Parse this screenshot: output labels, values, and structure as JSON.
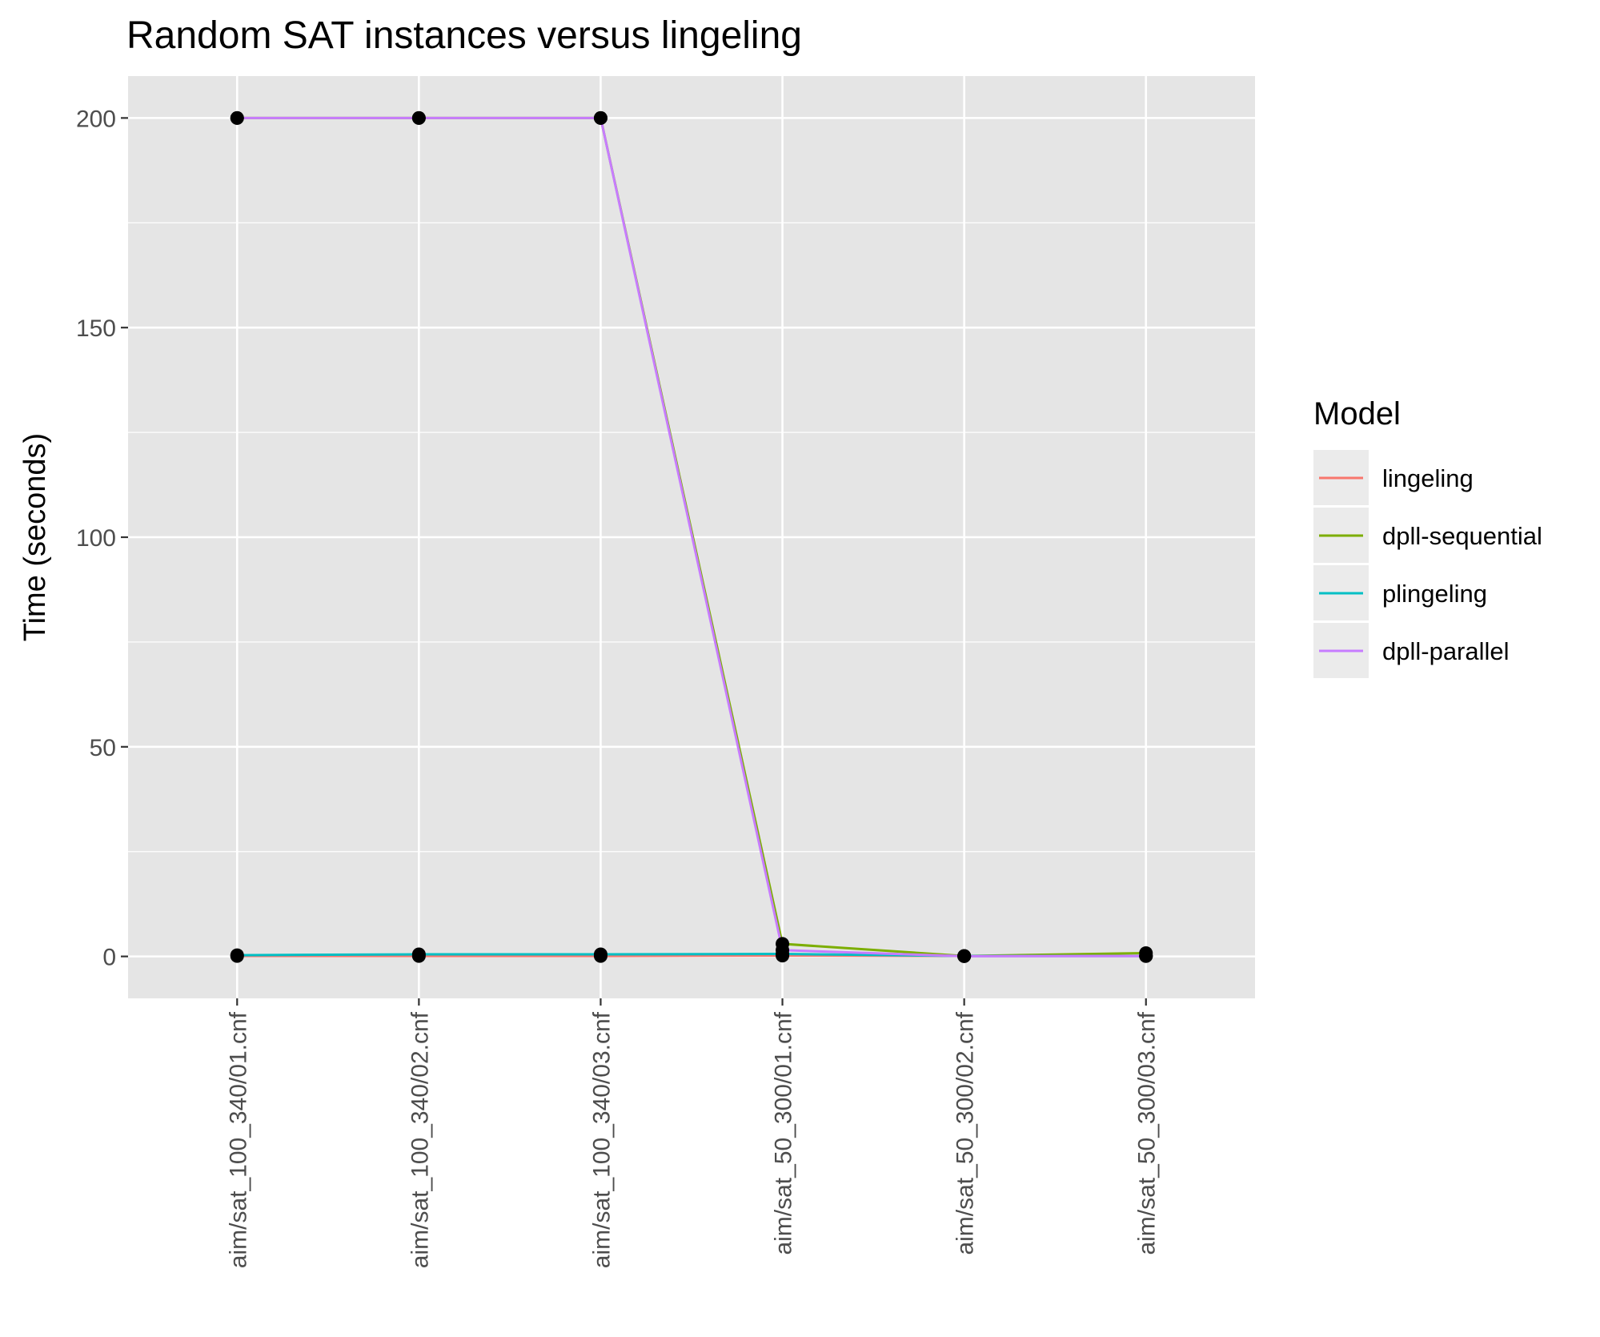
{
  "chart_data": {
    "type": "line",
    "title": "Random SAT instances versus lingeling",
    "xlabel": "",
    "ylabel": "Time (seconds)",
    "categories": [
      "aim/sat_100_340/01.cnf",
      "aim/sat_100_340/02.cnf",
      "aim/sat_100_340/03.cnf",
      "aim/sat_50_300/01.cnf",
      "aim/sat_50_300/02.cnf",
      "aim/sat_50_300/03.cnf"
    ],
    "ylim": [
      -10,
      210
    ],
    "yticks": [
      0,
      50,
      100,
      150,
      200
    ],
    "grid": true,
    "legend": {
      "title": "Model",
      "position": "right"
    },
    "series": [
      {
        "name": "lingeling",
        "color": "#F8766D",
        "values": [
          0.1,
          0.1,
          0.1,
          0.2,
          0.1,
          0.1
        ]
      },
      {
        "name": "dpll-sequential",
        "color": "#7CAE00",
        "values": [
          200,
          200,
          200,
          3,
          0.1,
          0.8
        ]
      },
      {
        "name": "plingeling",
        "color": "#00BFC4",
        "values": [
          0.3,
          0.5,
          0.5,
          0.6,
          0.1,
          0.1
        ]
      },
      {
        "name": "dpll-parallel",
        "color": "#C77CFF",
        "values": [
          200,
          200,
          200,
          1.5,
          0.05,
          0.1
        ]
      }
    ]
  }
}
